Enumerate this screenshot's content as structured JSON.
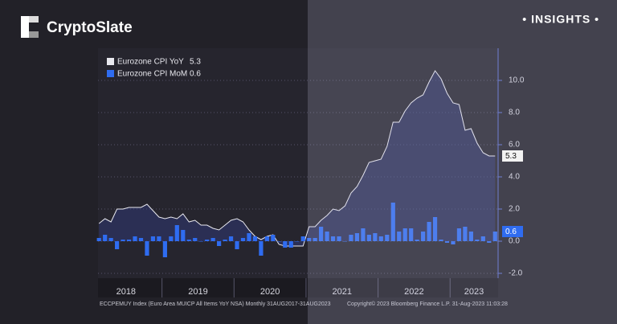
{
  "header": {
    "brand": "CryptoSlate",
    "tag": "• INSIGHTS •"
  },
  "chart_data": {
    "type": "bar-line",
    "x": [
      "2018-02",
      "2018-03",
      "2018-04",
      "2018-05",
      "2018-06",
      "2018-07",
      "2018-08",
      "2018-09",
      "2018-10",
      "2018-11",
      "2018-12",
      "2019-01",
      "2019-02",
      "2019-03",
      "2019-04",
      "2019-05",
      "2019-06",
      "2019-07",
      "2019-08",
      "2019-09",
      "2019-10",
      "2019-11",
      "2019-12",
      "2020-01",
      "2020-02",
      "2020-03",
      "2020-04",
      "2020-05",
      "2020-06",
      "2020-07",
      "2020-08",
      "2020-09",
      "2020-10",
      "2020-11",
      "2020-12",
      "2021-01",
      "2021-02",
      "2021-03",
      "2021-04",
      "2021-05",
      "2021-06",
      "2021-07",
      "2021-08",
      "2021-09",
      "2021-10",
      "2021-11",
      "2021-12",
      "2022-01",
      "2022-02",
      "2022-03",
      "2022-04",
      "2022-05",
      "2022-06",
      "2022-07",
      "2022-08",
      "2022-09",
      "2022-10",
      "2022-11",
      "2022-12",
      "2023-01",
      "2023-02",
      "2023-03",
      "2023-04",
      "2023-05",
      "2023-06",
      "2023-07",
      "2023-08"
    ],
    "xlim": [
      "2018-01",
      "2023-09"
    ],
    "xticks": [
      2018,
      2019,
      2020,
      2021,
      2022,
      2023
    ],
    "series": [
      {
        "name": "Eurozone CPI YoY",
        "color": "#e8e8ee",
        "kind": "line",
        "values": [
          1.1,
          1.4,
          1.2,
          2.0,
          2.0,
          2.1,
          2.1,
          2.1,
          2.3,
          1.9,
          1.5,
          1.4,
          1.5,
          1.4,
          1.7,
          1.2,
          1.3,
          1.0,
          1.0,
          0.8,
          0.7,
          1.0,
          1.3,
          1.4,
          1.2,
          0.7,
          0.3,
          0.1,
          0.3,
          0.4,
          -0.2,
          -0.3,
          -0.3,
          -0.3,
          -0.3,
          0.9,
          0.9,
          1.3,
          1.6,
          2.0,
          1.9,
          2.2,
          3.0,
          3.4,
          4.1,
          4.9,
          5.0,
          5.1,
          5.9,
          7.4,
          7.4,
          8.1,
          8.6,
          8.9,
          9.1,
          9.9,
          10.6,
          10.1,
          9.2,
          8.6,
          8.5,
          6.9,
          7.0,
          6.1,
          5.5,
          5.3,
          5.3
        ]
      },
      {
        "name": "Eurozone CPI MoM",
        "color": "#2f6cf0",
        "kind": "bar",
        "values": [
          0.2,
          0.4,
          0.2,
          -0.5,
          0.1,
          0.1,
          0.3,
          0.2,
          -0.9,
          0.3,
          0.3,
          -1.0,
          0.3,
          1.0,
          0.7,
          0.1,
          0.2,
          0.0,
          0.1,
          0.2,
          -0.3,
          0.1,
          0.3,
          -0.5,
          0.2,
          0.5,
          0.3,
          -0.9,
          0.3,
          0.4,
          0.0,
          -0.4,
          -0.4,
          0.0,
          0.3,
          0.2,
          0.2,
          0.9,
          0.6,
          0.3,
          0.3,
          0.0,
          0.4,
          0.5,
          0.8,
          0.4,
          0.5,
          0.3,
          0.4,
          2.4,
          0.6,
          0.8,
          0.8,
          0.1,
          0.6,
          1.2,
          1.5,
          0.1,
          -0.1,
          -0.2,
          0.8,
          0.9,
          0.6,
          0.1,
          0.3,
          -0.1,
          0.6
        ]
      }
    ],
    "ylim": [
      -2.3,
      11.8
    ],
    "yticks": [
      {
        "value": -2,
        "label": "-2.0"
      },
      {
        "value": 0,
        "label": "0.0"
      },
      {
        "value": 2,
        "label": "2.0"
      },
      {
        "value": 4,
        "label": "4.0"
      },
      {
        "value": 6,
        "label": "6.0"
      },
      {
        "value": 8,
        "label": "8.0"
      },
      {
        "value": 10,
        "label": "10.0"
      }
    ],
    "grid": true,
    "legend": "top-left",
    "footer_left": "ECCPEMUY Index (Euro Area MUICP All Items YoY NSA)  Monthly 31AUG2017-31AUG2023",
    "footer_right": "Copyright© 2023 Bloomberg Finance L.P.     31-Aug-2023 11:03:28"
  }
}
